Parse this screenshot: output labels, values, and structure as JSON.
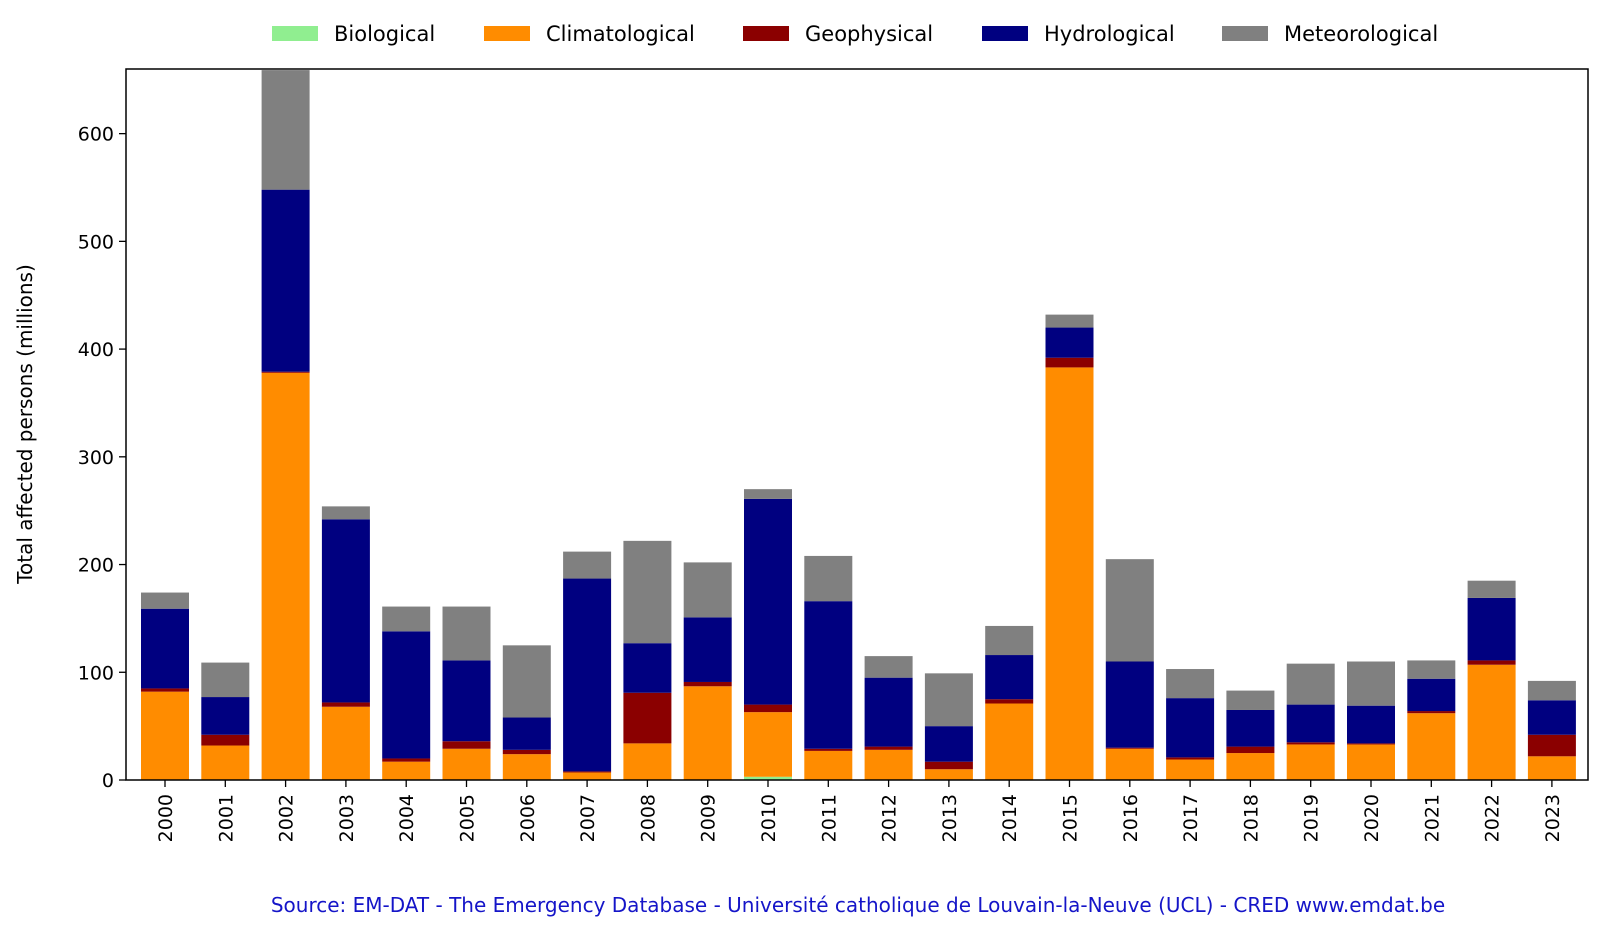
{
  "chart_data": {
    "type": "bar",
    "stacked": true,
    "title": "",
    "xlabel": "",
    "ylabel": "Total affected persons (millions)",
    "ylim": [
      0,
      660
    ],
    "yticks": [
      0,
      100,
      200,
      300,
      400,
      500,
      600
    ],
    "grid": false,
    "legend_position": "top",
    "categories": [
      "2000",
      "2001",
      "2002",
      "2003",
      "2004",
      "2005",
      "2006",
      "2007",
      "2008",
      "2009",
      "2010",
      "2011",
      "2012",
      "2013",
      "2014",
      "2015",
      "2016",
      "2017",
      "2018",
      "2019",
      "2020",
      "2021",
      "2022",
      "2023"
    ],
    "series": [
      {
        "name": "Biological",
        "color": "#90ee90",
        "values": [
          0,
          0,
          0,
          0,
          0,
          0,
          0,
          0,
          0,
          0,
          3,
          0,
          0,
          0,
          0,
          0,
          0,
          0,
          0,
          0,
          0,
          0,
          0,
          0
        ]
      },
      {
        "name": "Climatological",
        "color": "#ff8c00",
        "values": [
          82,
          32,
          378,
          68,
          17,
          29,
          24,
          7,
          34,
          87,
          60,
          27,
          28,
          10,
          71,
          383,
          29,
          19,
          25,
          33,
          33,
          62,
          107,
          22
        ]
      },
      {
        "name": "Geophysical",
        "color": "#8b0000",
        "values": [
          3,
          10,
          1,
          4,
          3,
          7,
          4,
          1,
          47,
          4,
          7,
          2,
          3,
          7,
          4,
          9,
          1,
          2,
          6,
          2,
          1,
          2,
          4,
          20
        ]
      },
      {
        "name": "Hydrological",
        "color": "#000080",
        "values": [
          74,
          35,
          169,
          170,
          118,
          75,
          30,
          179,
          46,
          60,
          191,
          137,
          64,
          33,
          41,
          28,
          80,
          55,
          34,
          35,
          35,
          30,
          58,
          32
        ]
      },
      {
        "name": "Meteorological",
        "color": "#808080",
        "values": [
          15,
          32,
          111,
          12,
          23,
          50,
          67,
          25,
          95,
          51,
          9,
          42,
          20,
          49,
          27,
          12,
          95,
          27,
          18,
          38,
          41,
          17,
          16,
          18
        ]
      }
    ]
  },
  "source": "Source: EM-DAT - The Emergency Database - Université catholique de Louvain-la-Neuve (UCL) - CRED www.emdat.be",
  "colors": {
    "source_text": "#1515c8",
    "axis": "#000000"
  }
}
